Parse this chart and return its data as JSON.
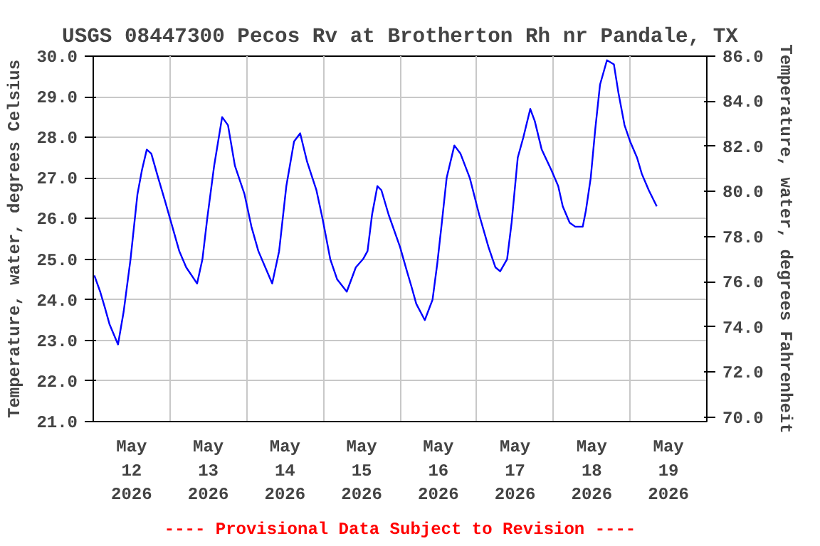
{
  "chart_data": {
    "type": "line",
    "title": "USGS 08447300 Pecos Rv at Brotherton Rh nr Pandale, TX",
    "ylabel": "Temperature, water, degrees Celsius",
    "y2label": "Temperature, water, degrees Fahrenheit",
    "annotations": [
      "---- Provisional Data Subject to Revision ----"
    ],
    "xlim": [
      "2026-05-12T00:00",
      "2026-05-20T00:00"
    ],
    "xticks": [
      {
        "value": "2026-05-12T12:00",
        "label": "May 12 2026"
      },
      {
        "value": "2026-05-13T12:00",
        "label": "May 13 2026"
      },
      {
        "value": "2026-05-14T12:00",
        "label": "May 14 2026"
      },
      {
        "value": "2026-05-15T12:00",
        "label": "May 15 2026"
      },
      {
        "value": "2026-05-16T12:00",
        "label": "May 16 2026"
      },
      {
        "value": "2026-05-17T12:00",
        "label": "May 17 2026"
      },
      {
        "value": "2026-05-18T12:00",
        "label": "May 18 2026"
      },
      {
        "value": "2026-05-19T12:00",
        "label": "May 19 2026"
      },
      {
        "value": "2026-05-13T00:00",
        "label": null
      },
      {
        "value": "2026-05-14T00:00",
        "label": null
      },
      {
        "value": "2026-05-15T00:00",
        "label": null
      },
      {
        "value": "2026-05-16T00:00",
        "label": null
      },
      {
        "value": "2026-05-17T00:00",
        "label": null
      },
      {
        "value": "2026-05-18T00:00",
        "label": null
      },
      {
        "value": "2026-05-19T00:00",
        "label": null
      }
    ],
    "ylim": [
      21,
      30
    ],
    "yticks": [
      {
        "value": 21,
        "label": "21.0"
      },
      {
        "value": 22,
        "label": "22.0"
      },
      {
        "value": 23,
        "label": "23.0"
      },
      {
        "value": 24,
        "label": "24.0"
      },
      {
        "value": 25,
        "label": "25.0"
      },
      {
        "value": 26,
        "label": "26.0"
      },
      {
        "value": 27,
        "label": "27.0"
      },
      {
        "value": 28,
        "label": "28.0"
      },
      {
        "value": 29,
        "label": "29.0"
      },
      {
        "value": 30,
        "label": "30.0"
      }
    ],
    "y2lim": [
      69.8,
      86
    ],
    "y2ticks": [
      {
        "value": 70,
        "label": "70.0"
      },
      {
        "value": 72,
        "label": "72.0"
      },
      {
        "value": 74,
        "label": "74.0"
      },
      {
        "value": 76,
        "label": "76.0"
      },
      {
        "value": 78,
        "label": "78.0"
      },
      {
        "value": 80,
        "label": "80.0"
      },
      {
        "value": 82,
        "label": "82.0"
      },
      {
        "value": 84,
        "label": "84.0"
      },
      {
        "value": 86,
        "label": "86.0"
      }
    ],
    "grid": true,
    "marker": "none",
    "line_style": "solid",
    "series": [
      {
        "color": "#0000ff",
        "x": [
          "2026-05-12T00:20",
          "2026-05-12T02:10",
          "2026-05-12T03:40",
          "2026-05-12T05:05",
          "2026-05-12T07:45",
          "2026-05-12T09:30",
          "2026-05-12T11:40",
          "2026-05-12T13:50",
          "2026-05-12T15:15",
          "2026-05-12T16:45",
          "2026-05-12T18:10",
          "2026-05-12T20:20",
          "2026-05-12T22:35",
          "2026-05-13T00:45",
          "2026-05-13T02:55",
          "2026-05-13T05:05",
          "2026-05-13T08:30",
          "2026-05-13T10:10",
          "2026-05-13T11:40",
          "2026-05-13T13:50",
          "2026-05-13T16:20",
          "2026-05-13T18:10",
          "2026-05-13T20:20",
          "2026-05-13T23:20",
          "2026-05-14T01:30",
          "2026-05-14T03:40",
          "2026-05-14T05:50",
          "2026-05-14T08:00",
          "2026-05-14T10:10",
          "2026-05-14T12:25",
          "2026-05-14T14:50",
          "2026-05-14T16:45",
          "2026-05-14T18:55",
          "2026-05-14T21:50",
          "2026-05-14T23:45",
          "2026-05-15T02:10",
          "2026-05-15T04:20",
          "2026-05-15T07:20",
          "2026-05-15T10:10",
          "2026-05-15T12:25",
          "2026-05-15T13:50",
          "2026-05-15T15:15",
          "2026-05-15T16:55",
          "2026-05-15T18:10",
          "2026-05-15T20:25",
          "2026-05-16T00:00",
          "2026-05-16T02:10",
          "2026-05-16T03:40",
          "2026-05-16T05:05",
          "2026-05-16T07:45",
          "2026-05-16T10:10",
          "2026-05-16T11:40",
          "2026-05-16T13:05",
          "2026-05-16T14:35",
          "2026-05-16T17:00",
          "2026-05-16T18:55",
          "2026-05-16T21:50",
          "2026-05-17T00:45",
          "2026-05-17T03:40",
          "2026-05-17T05:50",
          "2026-05-17T07:20",
          "2026-05-17T09:30",
          "2026-05-17T10:55",
          "2026-05-17T12:50",
          "2026-05-17T14:35",
          "2026-05-17T16:45",
          "2026-05-17T18:10",
          "2026-05-17T20:20",
          "2026-05-17T23:20",
          "2026-05-18T01:30",
          "2026-05-18T02:55",
          "2026-05-18T05:05",
          "2026-05-18T06:50",
          "2026-05-18T09:10",
          "2026-05-18T10:10",
          "2026-05-18T11:40",
          "2026-05-18T13:05",
          "2026-05-18T14:35",
          "2026-05-18T16:45",
          "2026-05-18T18:55",
          "2026-05-18T20:20",
          "2026-05-18T22:15",
          "2026-05-19T00:00",
          "2026-05-19T02:10",
          "2026-05-19T03:40",
          "2026-05-19T05:50",
          "2026-05-19T08:20"
        ],
        "values": [
          24.6,
          24.2,
          23.8,
          23.4,
          22.9,
          23.7,
          25.0,
          26.6,
          27.2,
          27.7,
          27.6,
          27.0,
          26.4,
          25.8,
          25.2,
          24.8,
          24.4,
          25.0,
          26.0,
          27.3,
          28.5,
          28.3,
          27.3,
          26.6,
          25.8,
          25.2,
          24.8,
          24.4,
          25.2,
          26.8,
          27.9,
          28.1,
          27.4,
          26.7,
          26.0,
          25.0,
          24.5,
          24.2,
          24.8,
          25.0,
          25.2,
          26.1,
          26.8,
          26.7,
          26.1,
          25.3,
          24.7,
          24.3,
          23.9,
          23.5,
          24.0,
          24.9,
          25.9,
          27.0,
          27.8,
          27.6,
          27.0,
          26.1,
          25.3,
          24.8,
          24.7,
          25.0,
          25.9,
          27.5,
          28.0,
          28.7,
          28.4,
          27.7,
          27.2,
          26.8,
          26.3,
          25.9,
          25.8,
          25.8,
          26.2,
          27.0,
          28.2,
          29.3,
          29.9,
          29.8,
          29.1,
          28.3,
          27.9,
          27.5,
          27.1,
          26.7,
          26.3
        ]
      }
    ]
  }
}
